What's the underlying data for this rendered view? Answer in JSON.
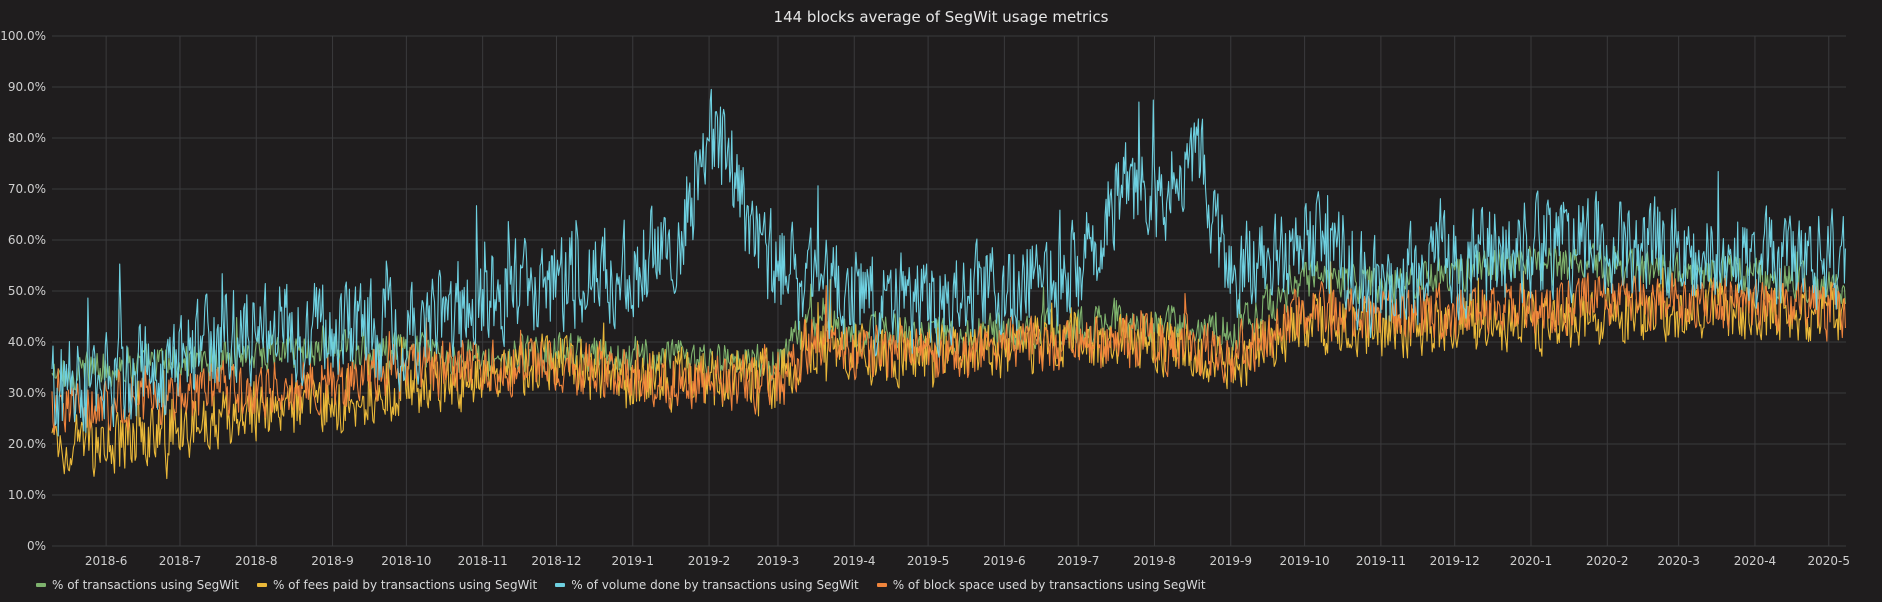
{
  "panel": {
    "title": "144 blocks average of SegWit usage metrics"
  },
  "chart_data": {
    "type": "line",
    "title": "144 blocks average of SegWit usage metrics",
    "xlabel": "",
    "ylabel": "",
    "ylim": [
      0,
      100
    ],
    "y_ticks": [
      "0%",
      "10.0%",
      "20.0%",
      "30.0%",
      "40.0%",
      "50.0%",
      "60.0%",
      "70.0%",
      "80.0%",
      "90.0%",
      "100.0%"
    ],
    "x_ticks": [
      "2018-6",
      "2018-7",
      "2018-8",
      "2018-9",
      "2018-10",
      "2018-11",
      "2018-12",
      "2019-1",
      "2019-2",
      "2019-3",
      "2019-4",
      "2019-5",
      "2019-6",
      "2019-7",
      "2019-8",
      "2019-9",
      "2019-10",
      "2019-11",
      "2019-12",
      "2020-1",
      "2020-2",
      "2020-3",
      "2020-4",
      "2020-5"
    ],
    "x_range": [
      "2018-05-10",
      "2020-05-08"
    ],
    "grid": true,
    "legend_position": "bottom-left",
    "series": [
      {
        "name": "% of transactions using SegWit",
        "color": "#7eb26d",
        "x": [
          "2018-05-10",
          "2018-06-01",
          "2018-07-01",
          "2018-08-01",
          "2018-09-01",
          "2018-10-01",
          "2018-11-01",
          "2018-12-01",
          "2019-01-01",
          "2019-02-01",
          "2019-03-01",
          "2019-03-15",
          "2019-04-01",
          "2019-05-01",
          "2019-06-01",
          "2019-07-01",
          "2019-08-01",
          "2019-09-01",
          "2019-10-01",
          "2019-11-01",
          "2019-12-01",
          "2020-01-01",
          "2020-02-01",
          "2020-03-01",
          "2020-04-01",
          "2020-05-08"
        ],
        "y": [
          33,
          35,
          36,
          38,
          39,
          38,
          37,
          38,
          37,
          36,
          36,
          44,
          42,
          41,
          42,
          43,
          44,
          42,
          52,
          51,
          54,
          55,
          55,
          54,
          53,
          50
        ]
      },
      {
        "name": "% of fees paid by transactions using SegWit",
        "color": "#eab839",
        "x": [
          "2018-05-10",
          "2018-06-01",
          "2018-07-01",
          "2018-08-01",
          "2018-09-01",
          "2018-10-01",
          "2018-11-01",
          "2018-12-01",
          "2019-01-01",
          "2019-02-01",
          "2019-03-01",
          "2019-03-15",
          "2019-04-01",
          "2019-05-01",
          "2019-06-01",
          "2019-07-01",
          "2019-08-01",
          "2019-09-01",
          "2019-10-01",
          "2019-11-01",
          "2019-12-01",
          "2020-01-01",
          "2020-02-01",
          "2020-03-01",
          "2020-04-01",
          "2020-05-08"
        ],
        "y": [
          20,
          19,
          23,
          26,
          28,
          31,
          33,
          36,
          32,
          33,
          32,
          40,
          38,
          38,
          39,
          40,
          40,
          36,
          44,
          43,
          44,
          44,
          45,
          46,
          46,
          46
        ]
      },
      {
        "name": "% of volume done by transactions using SegWit",
        "color": "#6ed0e0",
        "x": [
          "2018-05-10",
          "2018-06-01",
          "2018-07-01",
          "2018-08-01",
          "2018-09-01",
          "2018-10-01",
          "2018-11-01",
          "2018-12-01",
          "2019-01-01",
          "2019-01-20",
          "2019-02-01",
          "2019-02-10",
          "2019-02-20",
          "2019-03-01",
          "2019-04-01",
          "2019-05-01",
          "2019-06-01",
          "2019-07-01",
          "2019-07-20",
          "2019-08-01",
          "2019-08-20",
          "2019-09-01",
          "2019-10-01",
          "2019-11-01",
          "2019-12-01",
          "2020-01-01",
          "2020-02-01",
          "2020-03-01",
          "2020-04-01",
          "2020-05-08"
        ],
        "y": [
          30,
          33,
          36,
          43,
          42,
          41,
          49,
          52,
          54,
          60,
          80,
          75,
          58,
          55,
          48,
          47,
          50,
          55,
          70,
          68,
          75,
          52,
          60,
          50,
          55,
          58,
          60,
          57,
          55,
          57
        ]
      },
      {
        "name": "% of block space used by transactions using SegWit",
        "color": "#ef843c",
        "x": [
          "2018-05-10",
          "2018-06-01",
          "2018-07-01",
          "2018-08-01",
          "2018-09-01",
          "2018-10-01",
          "2018-11-01",
          "2018-12-01",
          "2019-01-01",
          "2019-02-01",
          "2019-03-01",
          "2019-03-15",
          "2019-04-01",
          "2019-05-01",
          "2019-06-01",
          "2019-07-01",
          "2019-08-01",
          "2019-09-01",
          "2019-10-01",
          "2019-11-01",
          "2019-12-01",
          "2020-01-01",
          "2020-02-01",
          "2020-03-01",
          "2020-04-01",
          "2020-05-08"
        ],
        "y": [
          27,
          28,
          29,
          31,
          32,
          34,
          35,
          36,
          33,
          32,
          31,
          40,
          38,
          37,
          39,
          40,
          40,
          37,
          46,
          45,
          46,
          47,
          48,
          48,
          47,
          46
        ]
      }
    ]
  }
}
